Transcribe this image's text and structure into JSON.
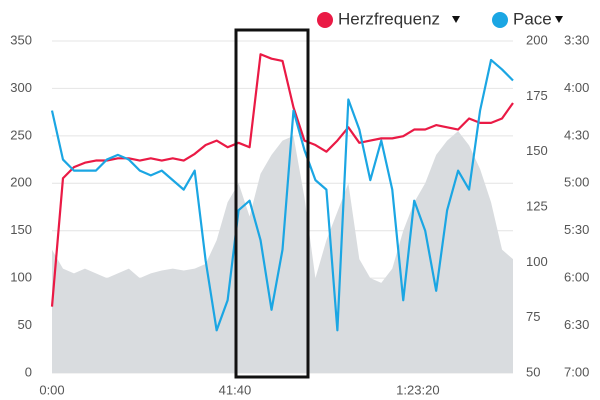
{
  "chart_data": {
    "type": "multi-axis-line",
    "x": [
      0,
      150,
      300,
      450,
      600,
      750,
      900,
      1050,
      1200,
      1350,
      1500,
      1650,
      1800,
      1950,
      2100,
      2250,
      2400,
      2550,
      2700,
      2850,
      3000,
      3150,
      3300,
      3450,
      3600,
      3750,
      3900,
      4050,
      4200,
      4350,
      4500,
      4650,
      4800,
      4950,
      5100,
      5250,
      5400,
      5550,
      5700,
      5850,
      6000,
      6150,
      6300
    ],
    "xlim": [
      0,
      6300
    ],
    "xticks": [
      {
        "value": 0,
        "label": "0:00"
      },
      {
        "value": 2500,
        "label": "41:40"
      },
      {
        "value": 5000,
        "label": "1:23:20"
      }
    ],
    "ylim": [
      0,
      350
    ],
    "yticks": [
      0,
      50,
      100,
      150,
      200,
      250,
      300,
      350
    ],
    "y2lim": [
      50,
      200
    ],
    "y2ticks": [
      50,
      75,
      100,
      125,
      150,
      175,
      200
    ],
    "y3lim": [
      420,
      210
    ],
    "y3ticks": [
      {
        "value": 210,
        "label": "3:30"
      },
      {
        "value": 240,
        "label": "4:00"
      },
      {
        "value": 270,
        "label": "4:30"
      },
      {
        "value": 300,
        "label": "5:00"
      },
      {
        "value": 330,
        "label": "5:30"
      },
      {
        "value": 360,
        "label": "6:00"
      },
      {
        "value": 390,
        "label": "6:30"
      },
      {
        "value": 420,
        "label": "7:00"
      }
    ],
    "grid": true,
    "series": [
      {
        "kind": "area",
        "axis": "y",
        "color": "#d9dcdf",
        "values": [
          130,
          110,
          105,
          110,
          105,
          100,
          105,
          110,
          100,
          105,
          108,
          110,
          108,
          110,
          115,
          140,
          180,
          200,
          165,
          210,
          230,
          245,
          250,
          185,
          100,
          140,
          170,
          200,
          120,
          100,
          95,
          110,
          150,
          180,
          200,
          230,
          245,
          255,
          240,
          215,
          180,
          130,
          120
        ]
      },
      {
        "name": "Herzfrequenz",
        "kind": "line",
        "axis": "y2",
        "color": "#ea1a45",
        "values": [
          80,
          138,
          143,
          145,
          146,
          146,
          147,
          147,
          146,
          147,
          146,
          147,
          146,
          149,
          153,
          155,
          152,
          154,
          152,
          194,
          192,
          191,
          170,
          155,
          153,
          150,
          155,
          161,
          154,
          155,
          156,
          156,
          157,
          160,
          160,
          162,
          161,
          160,
          165,
          163,
          163,
          165,
          172
        ]
      },
      {
        "name": "Pace",
        "kind": "line",
        "axis": "y3",
        "color": "#1ba6e3",
        "values": [
          254,
          285,
          292,
          292,
          292,
          285,
          282,
          285,
          292,
          295,
          292,
          298,
          304,
          292,
          349,
          393,
          374,
          317,
          311,
          336,
          380,
          342,
          254,
          279,
          298,
          304,
          393,
          247,
          266,
          298,
          273,
          304,
          374,
          311,
          330,
          368,
          317,
          292,
          304,
          254,
          222,
          228,
          235
        ]
      }
    ]
  }
}
